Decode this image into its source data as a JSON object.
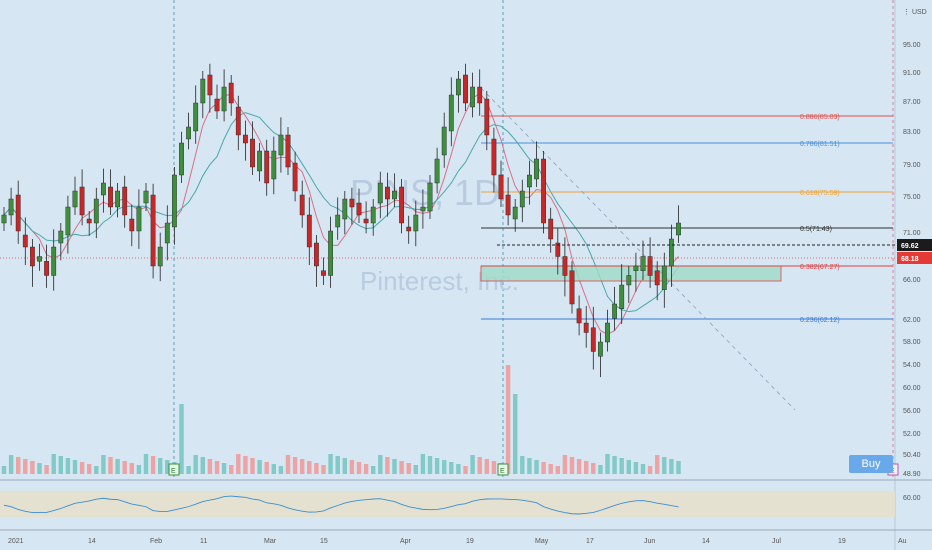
{
  "chart_data": {
    "type": "candlestick",
    "watermark": {
      "symbol": "PINS, 1D",
      "name": "Pinterest, Inc."
    },
    "currency": "USD",
    "y_ticks": [
      95.0,
      91.0,
      87.0,
      83.0,
      79.0,
      75.0,
      71.0,
      66.0,
      62.0,
      58.0,
      54.0
    ],
    "y_ticks_lower": [
      60.0,
      56.0,
      52.0
    ],
    "axis_labels_misc": [
      "50.40",
      "48.90"
    ],
    "x_ticks": [
      "2021",
      "14",
      "Feb",
      "11",
      "Mar",
      "15",
      "Apr",
      "19",
      "May",
      "17",
      "Jun",
      "14",
      "Jul",
      "19",
      "Au"
    ],
    "current_price": "69.62",
    "previous_close": "68.18",
    "fib_levels": [
      {
        "label": "0.886(85.03)",
        "value": 85.03,
        "color": "#d9534f"
      },
      {
        "label": "0.786(81.51)",
        "value": 81.51,
        "color": "#4a90d9"
      },
      {
        "label": "0.618(75.59)",
        "value": 75.59,
        "color": "#f0a030"
      },
      {
        "label": "0.5(71.43)",
        "value": 71.43,
        "color": "#333333"
      },
      {
        "label": "0.382(67.27)",
        "value": 67.27,
        "color": "#e04040"
      },
      {
        "label": "0.236(62.12)",
        "value": 62.12,
        "color": "#3a7bd5"
      }
    ],
    "buy_label": "Buy",
    "earnings_marker": "E",
    "rsi_level": "60.00"
  }
}
